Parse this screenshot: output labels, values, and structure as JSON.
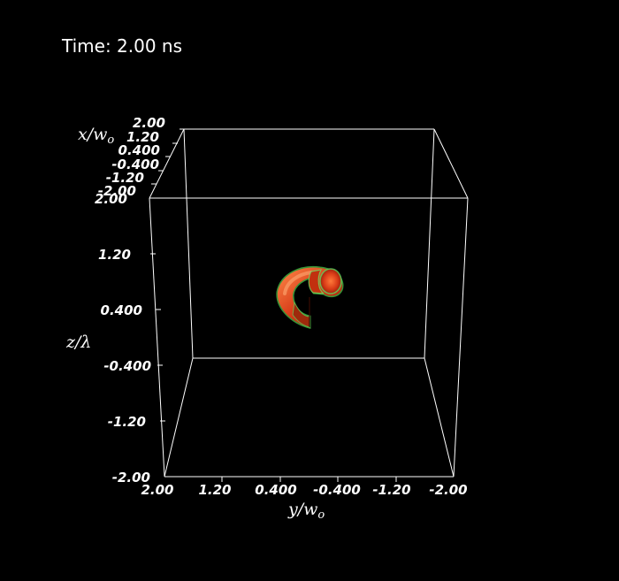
{
  "time_label": "Time: 2.00 ns",
  "axes": {
    "x": {
      "title_main": "x/w",
      "title_sub": "o",
      "tick_labels": [
        "2.00",
        "1.20",
        "0.400",
        "-0.400",
        "-1.20",
        "-2.00"
      ]
    },
    "y": {
      "title_main": "y/w",
      "title_sub": "o",
      "tick_labels": [
        "2.00",
        "1.20",
        "0.400",
        "-0.400",
        "-1.20",
        "-2.00"
      ]
    },
    "z": {
      "title": "z/λ",
      "tick_labels": [
        "2.00",
        "1.20",
        "0.400",
        "-0.400",
        "-1.20",
        "-2.00"
      ]
    }
  },
  "colors": {
    "background": "#000000",
    "box_lines": "#ffffff",
    "torus_core": "#e0401a",
    "torus_edge": "#3fbf3f"
  }
}
